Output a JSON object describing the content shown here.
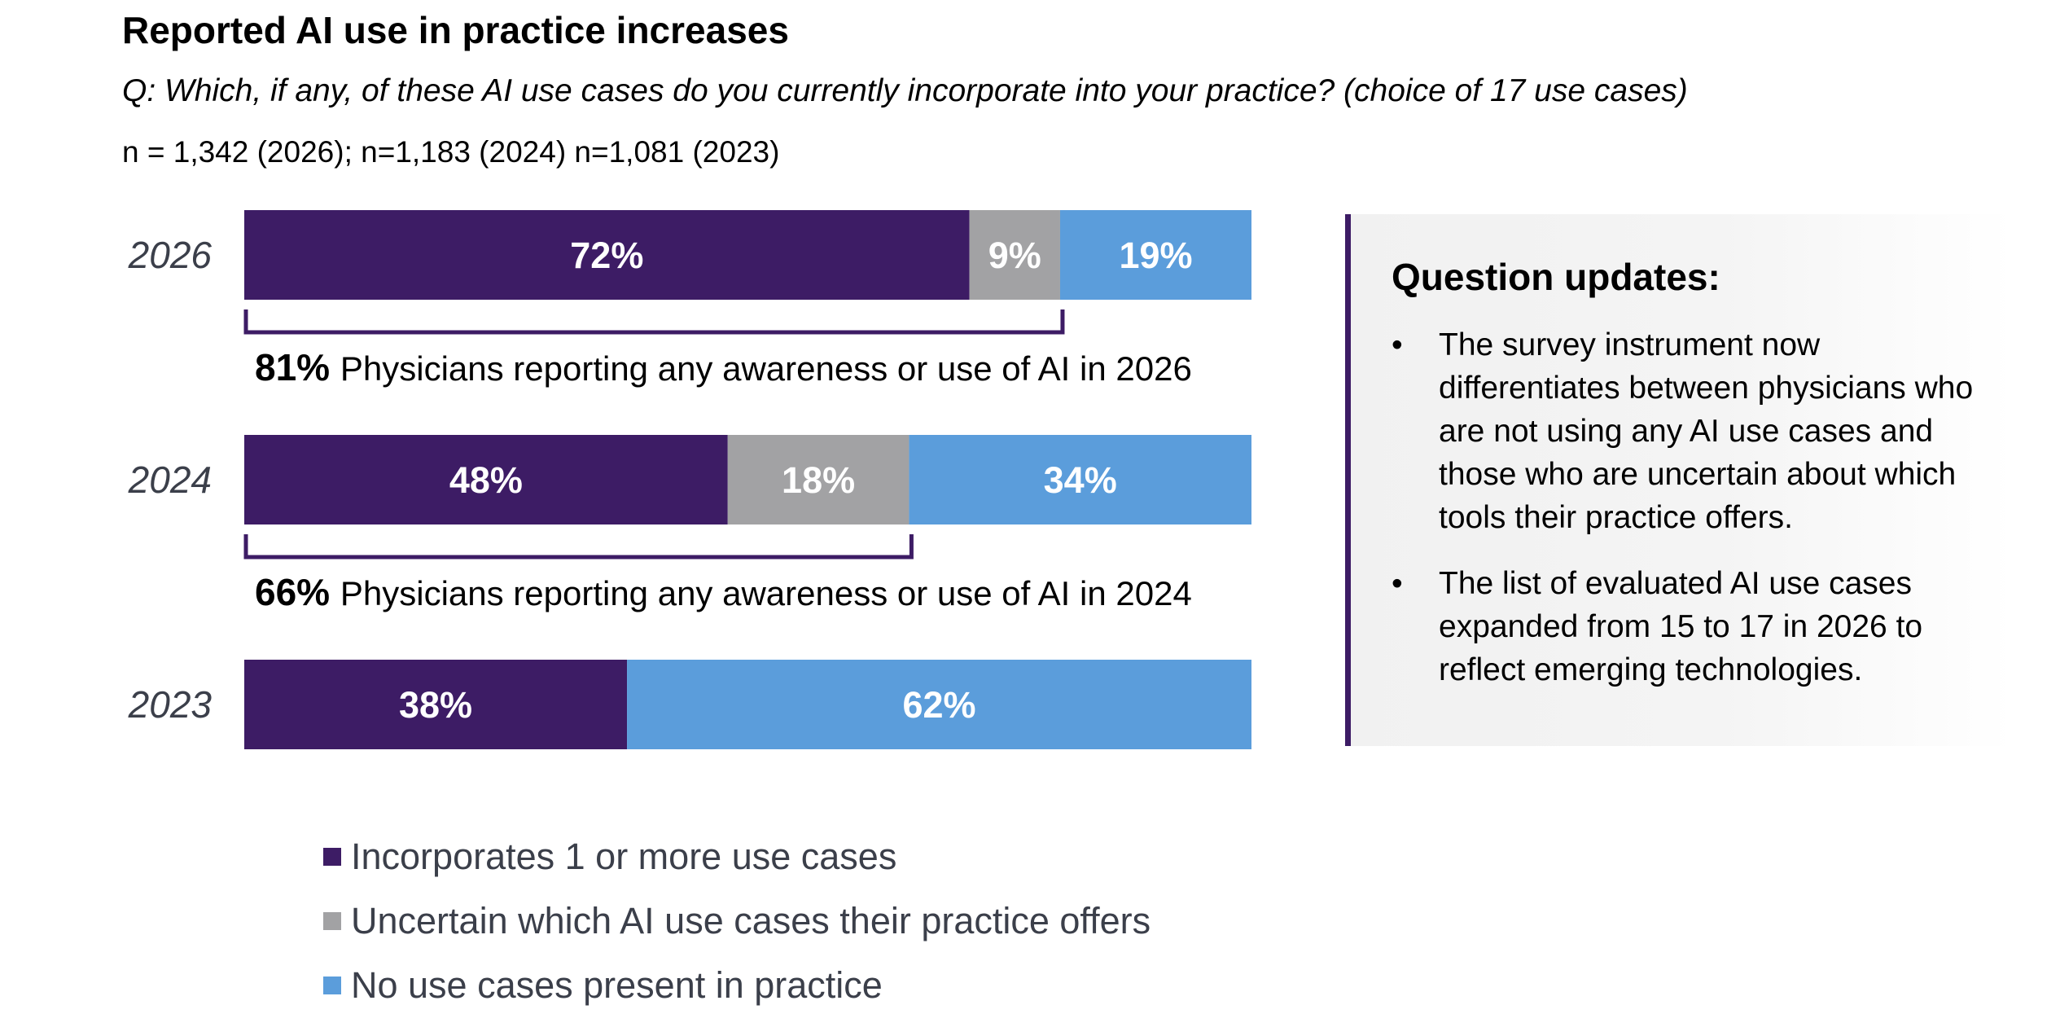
{
  "title": "Reported AI use in practice increases",
  "question": "Q: Which, if any, of these AI use cases do you currently incorporate into your practice? (choice of 17 use cases)",
  "sample_note": "n = 1,342 (2026); n=1,183 (2024) n=1,081 (2023)",
  "colors": {
    "incorporates": "#3d1c65",
    "uncertain": "#a2a2a4",
    "none": "#5b9ddb",
    "bracket": "#3d1c65"
  },
  "chart_data": {
    "type": "bar",
    "orientation": "horizontal",
    "stacked": true,
    "unit": "%",
    "categories": [
      "2026",
      "2024",
      "2023"
    ],
    "series": [
      {
        "name": "Incorporates 1 or more use cases",
        "values": [
          72,
          48,
          38
        ],
        "labels": [
          "72%",
          "48%",
          "38%"
        ]
      },
      {
        "name": "Uncertain which AI use cases their practice offers",
        "values": [
          9,
          18,
          null
        ],
        "labels": [
          "9%",
          "18%",
          ""
        ]
      },
      {
        "name": "No use cases present in practice",
        "values": [
          19,
          34,
          62
        ],
        "labels": [
          "19%",
          "34%",
          "62%"
        ]
      }
    ],
    "xlim": [
      0,
      100
    ],
    "annotations": [
      {
        "year": "2026",
        "covers_series": 2,
        "value": 81,
        "value_label": "81%",
        "text": "Physicians reporting any awareness or use of AI in 2026"
      },
      {
        "year": "2024",
        "covers_series": 2,
        "value": 66,
        "value_label": "66%",
        "text": "Physicians reporting any awareness or use of AI in 2024"
      }
    ],
    "legend": [
      {
        "label": "Incorporates 1 or more use cases",
        "color": "#3d1c65"
      },
      {
        "label": "Uncertain which AI use cases their practice offers",
        "color": "#a2a2a4"
      },
      {
        "label": "No use cases present in practice",
        "color": "#5b9ddb"
      }
    ],
    "legend_position": "bottom"
  },
  "panel": {
    "title": "Question updates:",
    "bullet_symbol": "•",
    "bullets": [
      "The survey instrument now differentiates between physicians who are not using any AI use cases and those who are uncertain about which tools their practice offers.",
      "The list of evaluated AI use cases expanded from 15 to 17 in 2026 to reflect emerging technologies."
    ]
  }
}
